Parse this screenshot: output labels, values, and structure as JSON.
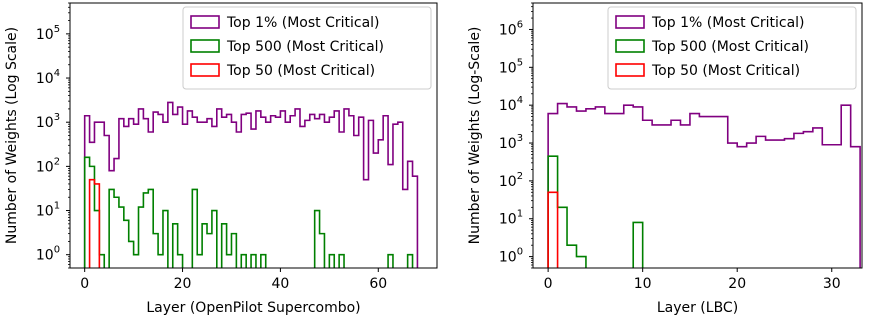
{
  "chart_data": [
    {
      "type": "histogram",
      "xlabel": "Layer (OpenPilot Supercombo)",
      "ylabel": "Number of Weights (Log Scale)",
      "yscale": "log",
      "xlim": [
        -3,
        72
      ],
      "ylim": [
        0.5,
        500000
      ],
      "xticks": [
        0,
        20,
        40,
        60
      ],
      "yticks": [
        {
          "base": "10",
          "exp": "0",
          "value": 1
        },
        {
          "base": "10",
          "exp": "1",
          "value": 10
        },
        {
          "base": "10",
          "exp": "2",
          "value": 100
        },
        {
          "base": "10",
          "exp": "3",
          "value": 1000
        },
        {
          "base": "10",
          "exp": "4",
          "value": 10000
        },
        {
          "base": "10",
          "exp": "5",
          "value": 100000
        }
      ],
      "legend_position": "top-right",
      "x_start": 0,
      "series": [
        {
          "name": "Top 1% (Most Critical)",
          "color": "#800080",
          "values": [
            1400,
            350,
            1000,
            1000,
            500,
            80,
            150,
            1200,
            800,
            1200,
            900,
            2000,
            1200,
            600,
            1700,
            1500,
            1000,
            2800,
            1500,
            2200,
            900,
            1800,
            1300,
            1000,
            1000,
            1200,
            800,
            2000,
            1300,
            1500,
            1000,
            600,
            1500,
            1600,
            700,
            1800,
            1300,
            1000,
            1400,
            1300,
            1800,
            1000,
            1400,
            2000,
            800,
            1100,
            1500,
            1200,
            1500,
            1000,
            1300,
            1800,
            600,
            2000,
            1400,
            500,
            1300,
            50,
            1100,
            200,
            400,
            1400,
            110,
            900,
            1000,
            30,
            130,
            60
          ]
        },
        {
          "name": "Top 500 (Most Critical)",
          "color": "#008000",
          "values": [
            160,
            100,
            10,
            1,
            0,
            30,
            20,
            12,
            6,
            2,
            1,
            12,
            25,
            30,
            3,
            1,
            10,
            0,
            5,
            1,
            0,
            0,
            30,
            1,
            5,
            3,
            10,
            0,
            5,
            1,
            3,
            0,
            1,
            0,
            1,
            0,
            1,
            0,
            0,
            0,
            0,
            0,
            0,
            0,
            0,
            0,
            0,
            10,
            3,
            0,
            1,
            0,
            1,
            0,
            0,
            0,
            0,
            0,
            0,
            0,
            0,
            0,
            1,
            0,
            0,
            0,
            1,
            0
          ]
        },
        {
          "name": "Top 50 (Most Critical)",
          "color": "#ff0000",
          "values": [
            0,
            50,
            40,
            0,
            0,
            0,
            0,
            0,
            0,
            0,
            0,
            0,
            0,
            0,
            0,
            0,
            0,
            0,
            0,
            0,
            0,
            0,
            0,
            0,
            0,
            0,
            0,
            0,
            0,
            0,
            0,
            0,
            0,
            0,
            0,
            0,
            0,
            0,
            0,
            0,
            0,
            0,
            0,
            0,
            0,
            0,
            0,
            0,
            0,
            0,
            0,
            0,
            0,
            0,
            0,
            0,
            0,
            0,
            0,
            0,
            0,
            0,
            0,
            0,
            0,
            0,
            0,
            0
          ]
        }
      ]
    },
    {
      "type": "histogram",
      "xlabel": "Layer (LBC)",
      "ylabel": "Number of Weights (Log-Scale)",
      "yscale": "log",
      "xlim": [
        -1.6,
        33.2
      ],
      "ylim": [
        0.5,
        5000000
      ],
      "xticks": [
        0,
        10,
        20,
        30
      ],
      "yticks": [
        {
          "base": "10",
          "exp": "0",
          "value": 1
        },
        {
          "base": "10",
          "exp": "1",
          "value": 10
        },
        {
          "base": "10",
          "exp": "2",
          "value": 100
        },
        {
          "base": "10",
          "exp": "3",
          "value": 1000
        },
        {
          "base": "10",
          "exp": "4",
          "value": 10000
        },
        {
          "base": "10",
          "exp": "5",
          "value": 100000
        },
        {
          "base": "10",
          "exp": "6",
          "value": 1000000
        }
      ],
      "legend_position": "top-right",
      "x_start": 0,
      "series": [
        {
          "name": "Top 1% (Most Critical)",
          "color": "#800080",
          "values": [
            6000,
            11000,
            9000,
            7000,
            8000,
            9000,
            6000,
            6000,
            10000,
            9000,
            4000,
            3000,
            3000,
            4000,
            3000,
            6000,
            5000,
            5000,
            5000,
            1000,
            800,
            1000,
            1500,
            1200,
            1200,
            1300,
            1800,
            2000,
            2500,
            900,
            900,
            10000,
            800
          ]
        },
        {
          "name": "Top 500 (Most Critical)",
          "color": "#008000",
          "values": [
            450,
            20,
            2,
            1,
            0,
            0,
            0,
            0,
            0,
            8,
            0,
            0,
            0,
            0,
            0,
            0,
            0,
            0,
            0,
            0,
            0,
            0,
            0,
            0,
            0,
            0,
            0,
            0,
            0,
            0,
            0,
            0,
            0
          ]
        },
        {
          "name": "Top 50 (Most Critical)",
          "color": "#ff0000",
          "values": [
            50,
            0,
            0,
            0,
            0,
            0,
            0,
            0,
            0,
            0,
            0,
            0,
            0,
            0,
            0,
            0,
            0,
            0,
            0,
            0,
            0,
            0,
            0,
            0,
            0,
            0,
            0,
            0,
            0,
            0,
            0,
            0,
            0
          ]
        }
      ]
    }
  ]
}
